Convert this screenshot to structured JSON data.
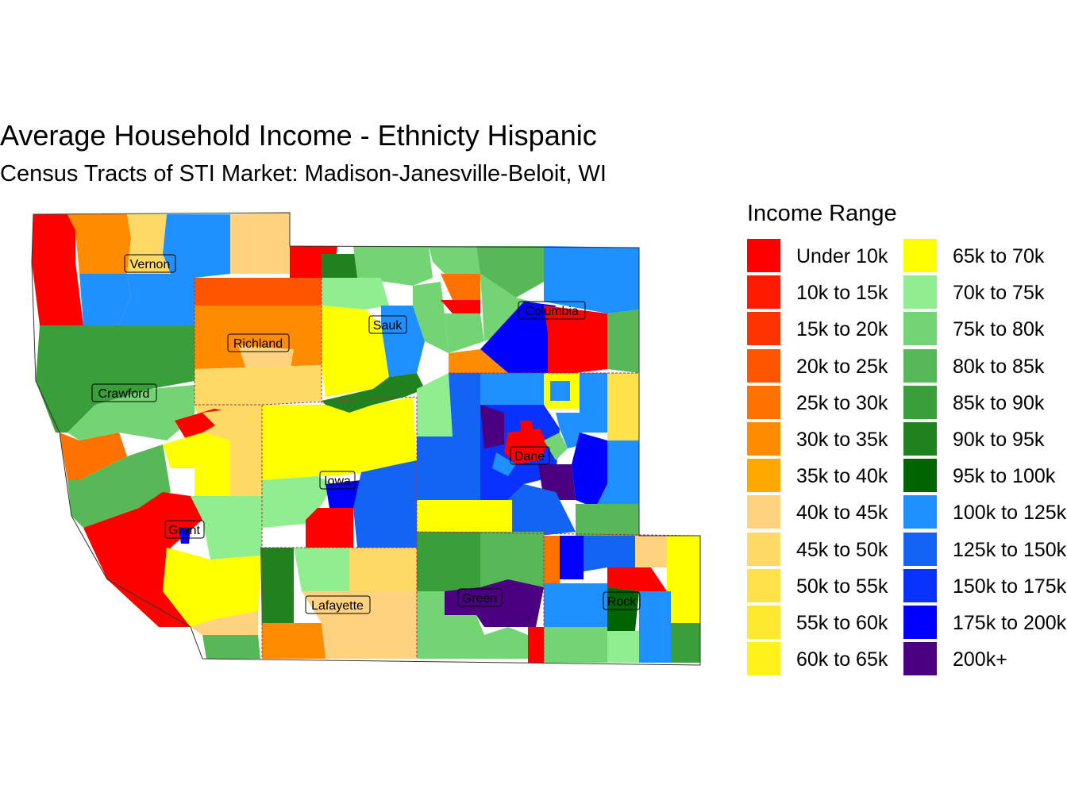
{
  "title": "Average Household Income - Ethnicty Hispanic",
  "subtitle": "Census Tracts of STI Market: Madison-Janesville-Beloit, WI",
  "legend": {
    "title": "Income Range",
    "items": [
      {
        "label": "Under 10k",
        "color": "#ff0000"
      },
      {
        "label": "10k to 15k",
        "color": "#ff1a00"
      },
      {
        "label": "15k to 20k",
        "color": "#ff3300"
      },
      {
        "label": "20k to 25k",
        "color": "#ff5500"
      },
      {
        "label": "25k to 30k",
        "color": "#ff7200"
      },
      {
        "label": "30k to 35k",
        "color": "#ff8c00"
      },
      {
        "label": "35k to 40k",
        "color": "#ffa800"
      },
      {
        "label": "40k to 45k",
        "color": "#ffd27f"
      },
      {
        "label": "45k to 50k",
        "color": "#ffd966"
      },
      {
        "label": "50k to 55k",
        "color": "#ffe14a"
      },
      {
        "label": "55k to 60k",
        "color": "#ffe930"
      },
      {
        "label": "60k to 65k",
        "color": "#fff21a"
      },
      {
        "label": "65k to 70k",
        "color": "#ffff00"
      },
      {
        "label": "70k to 75k",
        "color": "#90ee90"
      },
      {
        "label": "75k to 80k",
        "color": "#73d473"
      },
      {
        "label": "80k to 85k",
        "color": "#56b856"
      },
      {
        "label": "85k to 90k",
        "color": "#3a9e3a"
      },
      {
        "label": "90k to 95k",
        "color": "#1f821f"
      },
      {
        "label": "95k to 100k",
        "color": "#006400"
      },
      {
        "label": "100k to 125k",
        "color": "#1e90ff"
      },
      {
        "label": "125k to 150k",
        "color": "#1464f4"
      },
      {
        "label": "150k to 175k",
        "color": "#0a32ff"
      },
      {
        "label": "175k to 200k",
        "color": "#0000ff"
      },
      {
        "label": "200k+",
        "color": "#4b0082"
      }
    ]
  },
  "counties": [
    "Vernon",
    "Richland",
    "Sauk",
    "Columbia",
    "Crawford",
    "Dane",
    "Iowa",
    "Grant",
    "Lafayette",
    "Green",
    "Rock"
  ]
}
